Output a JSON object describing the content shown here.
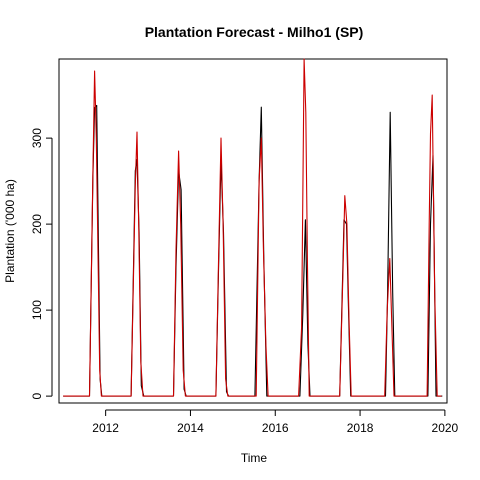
{
  "chart_data": {
    "type": "line",
    "title": "Plantation Forecast - Milho1 (SP)",
    "xlabel": "Time",
    "ylabel": "Plantation ('000 ha)",
    "xlim": [
      2010.9,
      2020.05
    ],
    "ylim": [
      -8,
      392
    ],
    "xticks": [
      2012,
      2014,
      2016,
      2018,
      2020
    ],
    "yticks": [
      0,
      100,
      200,
      300
    ],
    "grid": false,
    "legend": "none",
    "series": [
      {
        "color": "#000000",
        "points": [
          [
            2011.0,
            0
          ],
          [
            2011.6,
            0
          ],
          [
            2011.62,
            0
          ],
          [
            2011.7,
            255
          ],
          [
            2011.74,
            335
          ],
          [
            2011.79,
            338
          ],
          [
            2011.87,
            20
          ],
          [
            2011.91,
            0
          ],
          [
            2012.6,
            0
          ],
          [
            2012.7,
            262
          ],
          [
            2012.74,
            275
          ],
          [
            2012.79,
            190
          ],
          [
            2012.84,
            12
          ],
          [
            2012.9,
            0
          ],
          [
            2013.6,
            0
          ],
          [
            2013.66,
            150
          ],
          [
            2013.72,
            262
          ],
          [
            2013.78,
            240
          ],
          [
            2013.85,
            8
          ],
          [
            2013.9,
            0
          ],
          [
            2014.6,
            0
          ],
          [
            2014.66,
            140
          ],
          [
            2014.72,
            275
          ],
          [
            2014.78,
            190
          ],
          [
            2014.85,
            5
          ],
          [
            2014.9,
            0
          ],
          [
            2015.52,
            0
          ],
          [
            2015.62,
            250
          ],
          [
            2015.67,
            336
          ],
          [
            2015.73,
            160
          ],
          [
            2015.8,
            0
          ],
          [
            2016.58,
            0
          ],
          [
            2016.65,
            95
          ],
          [
            2016.71,
            205
          ],
          [
            2016.77,
            60
          ],
          [
            2016.82,
            0
          ],
          [
            2017.52,
            0
          ],
          [
            2017.62,
            205
          ],
          [
            2017.68,
            200
          ],
          [
            2017.72,
            115
          ],
          [
            2017.78,
            0
          ],
          [
            2018.6,
            0
          ],
          [
            2018.65,
            120
          ],
          [
            2018.71,
            330
          ],
          [
            2018.77,
            120
          ],
          [
            2018.82,
            0
          ],
          [
            2019.6,
            0
          ],
          [
            2019.66,
            200
          ],
          [
            2019.72,
            280
          ],
          [
            2019.79,
            0
          ],
          [
            2019.94,
            0
          ]
        ]
      },
      {
        "color": "#cc0000",
        "points": [
          [
            2011.0,
            0
          ],
          [
            2011.6,
            0
          ],
          [
            2011.62,
            0
          ],
          [
            2011.7,
            260
          ],
          [
            2011.74,
            378
          ],
          [
            2011.78,
            300
          ],
          [
            2011.86,
            30
          ],
          [
            2011.9,
            0
          ],
          [
            2012.6,
            0
          ],
          [
            2012.7,
            245
          ],
          [
            2012.74,
            307
          ],
          [
            2012.78,
            200
          ],
          [
            2012.83,
            40
          ],
          [
            2012.88,
            0
          ],
          [
            2013.6,
            0
          ],
          [
            2013.66,
            170
          ],
          [
            2013.72,
            285
          ],
          [
            2013.77,
            200
          ],
          [
            2013.83,
            30
          ],
          [
            2013.88,
            0
          ],
          [
            2014.6,
            0
          ],
          [
            2014.66,
            150
          ],
          [
            2014.72,
            300
          ],
          [
            2014.77,
            200
          ],
          [
            2014.83,
            20
          ],
          [
            2014.88,
            0
          ],
          [
            2015.55,
            0
          ],
          [
            2015.62,
            250
          ],
          [
            2015.67,
            300
          ],
          [
            2015.72,
            172
          ],
          [
            2015.78,
            60
          ],
          [
            2015.83,
            0
          ],
          [
            2016.55,
            0
          ],
          [
            2016.62,
            80
          ],
          [
            2016.68,
            392
          ],
          [
            2016.72,
            330
          ],
          [
            2016.76,
            150
          ],
          [
            2016.8,
            0
          ],
          [
            2017.52,
            0
          ],
          [
            2017.6,
            150
          ],
          [
            2017.64,
            233
          ],
          [
            2017.69,
            200
          ],
          [
            2017.74,
            90
          ],
          [
            2017.79,
            0
          ],
          [
            2018.58,
            0
          ],
          [
            2018.64,
            100
          ],
          [
            2018.7,
            160
          ],
          [
            2018.75,
            80
          ],
          [
            2018.8,
            0
          ],
          [
            2019.58,
            0
          ],
          [
            2019.63,
            200
          ],
          [
            2019.66,
            305
          ],
          [
            2019.7,
            350
          ],
          [
            2019.76,
            120
          ],
          [
            2019.82,
            0
          ],
          [
            2019.92,
            0
          ]
        ]
      }
    ]
  }
}
